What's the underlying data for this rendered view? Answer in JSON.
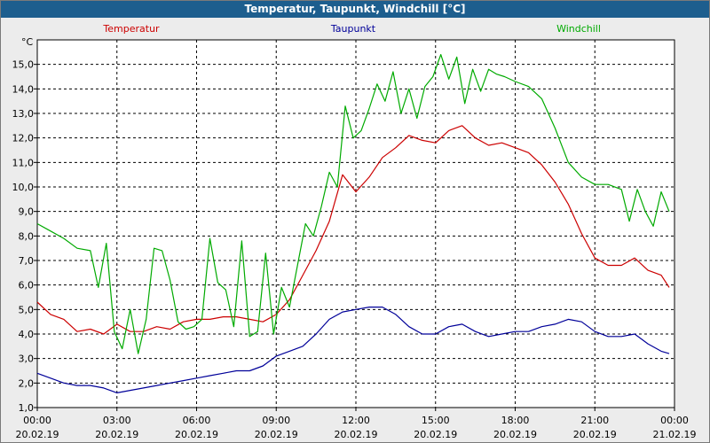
{
  "window": {
    "title": "Temperatur, Taupunkt, Windchill [°C]"
  },
  "chart_data": {
    "type": "line",
    "title": "Temperatur, Taupunkt, Windchill [°C]",
    "ylabel": "°C",
    "ylim": [
      1.0,
      16.0
    ],
    "y_ticks": [
      "1,0",
      "2,0",
      "3,0",
      "4,0",
      "5,0",
      "6,0",
      "7,0",
      "8,0",
      "9,0",
      "10,0",
      "11,0",
      "12,0",
      "13,0",
      "14,0",
      "15,0"
    ],
    "xlim": [
      0,
      24
    ],
    "x_ticks": [
      {
        "time": "00:00",
        "date": "20.02.19"
      },
      {
        "time": "03:00",
        "date": "20.02.19"
      },
      {
        "time": "06:00",
        "date": "20.02.19"
      },
      {
        "time": "09:00",
        "date": "20.02.19"
      },
      {
        "time": "12:00",
        "date": "20.02.19"
      },
      {
        "time": "15:00",
        "date": "20.02.19"
      },
      {
        "time": "18:00",
        "date": "20.02.19"
      },
      {
        "time": "21:00",
        "date": "20.02.19"
      },
      {
        "time": "00:00",
        "date": "21.02.19"
      }
    ],
    "grid": true,
    "legend_placement": "top",
    "series": [
      {
        "name": "Temperatur",
        "color": "#cc0000",
        "x": [
          0,
          0.5,
          1,
          1.5,
          2,
          2.5,
          3,
          3.5,
          4,
          4.5,
          5,
          5.5,
          6,
          6.5,
          7,
          7.5,
          8,
          8.5,
          9,
          9.5,
          10,
          10.5,
          11,
          11.5,
          12,
          12.5,
          13,
          13.5,
          14,
          14.5,
          15,
          15.5,
          16,
          16.5,
          17,
          17.5,
          18,
          18.5,
          19,
          19.5,
          20,
          20.5,
          21,
          21.5,
          22,
          22.5,
          23,
          23.5,
          23.8
        ],
        "y": [
          5.3,
          4.8,
          4.6,
          4.1,
          4.2,
          4.0,
          4.4,
          4.1,
          4.1,
          4.3,
          4.2,
          4.5,
          4.6,
          4.6,
          4.7,
          4.7,
          4.6,
          4.5,
          4.8,
          5.4,
          6.4,
          7.4,
          8.6,
          10.5,
          9.8,
          10.4,
          11.2,
          11.6,
          12.1,
          11.9,
          11.8,
          12.3,
          12.5,
          12.0,
          11.7,
          11.8,
          11.6,
          11.4,
          10.9,
          10.2,
          9.3,
          8.1,
          7.1,
          6.8,
          6.8,
          7.1,
          6.6,
          6.4,
          5.9
        ]
      },
      {
        "name": "Taupunkt",
        "color": "#000099",
        "x": [
          0,
          0.5,
          1,
          1.5,
          2,
          2.5,
          3,
          3.5,
          4,
          4.5,
          5,
          5.5,
          6,
          6.5,
          7,
          7.5,
          8,
          8.5,
          9,
          9.5,
          10,
          10.5,
          11,
          11.5,
          12,
          12.5,
          13,
          13.5,
          14,
          14.5,
          15,
          15.5,
          16,
          16.5,
          17,
          17.5,
          18,
          18.5,
          19,
          19.5,
          20,
          20.5,
          21,
          21.5,
          22,
          22.5,
          23,
          23.5,
          23.8
        ],
        "y": [
          2.4,
          2.2,
          2.0,
          1.9,
          1.9,
          1.8,
          1.6,
          1.7,
          1.8,
          1.9,
          2.0,
          2.1,
          2.2,
          2.3,
          2.4,
          2.5,
          2.5,
          2.7,
          3.1,
          3.3,
          3.5,
          4.0,
          4.6,
          4.9,
          5.0,
          5.1,
          5.1,
          4.8,
          4.3,
          4.0,
          4.0,
          4.3,
          4.4,
          4.1,
          3.9,
          4.0,
          4.1,
          4.1,
          4.3,
          4.4,
          4.6,
          4.5,
          4.1,
          3.9,
          3.9,
          4.0,
          3.6,
          3.3,
          3.2
        ]
      },
      {
        "name": "Windchill",
        "color": "#00aa00",
        "x": [
          0,
          0.5,
          1,
          1.5,
          2,
          2.3,
          2.6,
          2.9,
          3.2,
          3.5,
          3.8,
          4.1,
          4.4,
          4.7,
          5,
          5.3,
          5.6,
          5.9,
          6.2,
          6.5,
          6.8,
          7.1,
          7.4,
          7.7,
          8,
          8.3,
          8.6,
          8.9,
          9.2,
          9.5,
          9.8,
          10.1,
          10.4,
          10.7,
          11,
          11.3,
          11.6,
          11.9,
          12.2,
          12.5,
          12.8,
          13.1,
          13.4,
          13.7,
          14,
          14.3,
          14.6,
          14.9,
          15.2,
          15.5,
          15.8,
          16.1,
          16.4,
          16.7,
          17,
          17.3,
          17.6,
          18,
          18.5,
          19,
          19.5,
          20,
          20.5,
          21,
          21.5,
          22,
          22.3,
          22.6,
          22.9,
          23.2,
          23.5,
          23.8
        ],
        "y": [
          8.5,
          8.2,
          7.9,
          7.5,
          7.4,
          5.9,
          7.7,
          4.1,
          3.4,
          5.0,
          3.2,
          4.6,
          7.5,
          7.4,
          6.2,
          4.5,
          4.2,
          4.3,
          4.6,
          7.9,
          6.1,
          5.8,
          4.3,
          7.8,
          3.9,
          4.1,
          7.3,
          4.0,
          5.9,
          5.1,
          6.8,
          8.5,
          8.0,
          9.2,
          10.6,
          10.0,
          13.3,
          12.0,
          12.3,
          13.2,
          14.2,
          13.5,
          14.7,
          13.0,
          14.0,
          12.8,
          14.1,
          14.5,
          15.4,
          14.4,
          15.3,
          13.4,
          14.8,
          13.9,
          14.8,
          14.6,
          14.5,
          14.3,
          14.1,
          13.6,
          12.4,
          11.0,
          10.4,
          10.1,
          10.1,
          9.9,
          8.6,
          9.9,
          9.0,
          8.4,
          9.8,
          9.0
        ]
      }
    ]
  }
}
